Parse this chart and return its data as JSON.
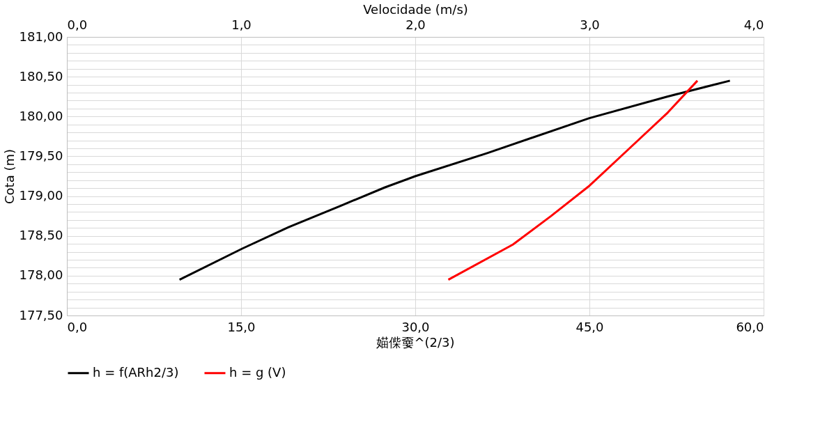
{
  "chart_data": {
    "type": "line",
    "xlabel": "媌偨嫑^(2/3)",
    "ylabel": "Cota (m)",
    "x2label": "Velocidade (m/s)",
    "xlim": [
      0,
      60
    ],
    "xticks": [
      {
        "value": 0,
        "label": "0,0"
      },
      {
        "value": 15,
        "label": "15,0"
      },
      {
        "value": 30,
        "label": "30,0"
      },
      {
        "value": 45,
        "label": "45,0"
      },
      {
        "value": 60,
        "label": "60,0"
      }
    ],
    "x2lim": [
      0,
      4
    ],
    "x2ticks": [
      {
        "value": 0,
        "label": "0,0"
      },
      {
        "value": 1,
        "label": "1,0"
      },
      {
        "value": 2,
        "label": "2,0"
      },
      {
        "value": 3,
        "label": "3,0"
      },
      {
        "value": 4,
        "label": "4,0"
      }
    ],
    "ylim": [
      177.5,
      181
    ],
    "yticks": [
      {
        "value": 177.5,
        "label": "177,50"
      },
      {
        "value": 177.6,
        "label": null
      },
      {
        "value": 177.7,
        "label": null
      },
      {
        "value": 177.8,
        "label": null
      },
      {
        "value": 177.9,
        "label": null
      },
      {
        "value": 178,
        "label": "178,00"
      },
      {
        "value": 178.1,
        "label": null
      },
      {
        "value": 178.2,
        "label": null
      },
      {
        "value": 178.3,
        "label": null
      },
      {
        "value": 178.4,
        "label": null
      },
      {
        "value": 178.5,
        "label": "178,50"
      },
      {
        "value": 178.6,
        "label": null
      },
      {
        "value": 178.7,
        "label": null
      },
      {
        "value": 178.8,
        "label": null
      },
      {
        "value": 178.9,
        "label": null
      },
      {
        "value": 179,
        "label": "179,00"
      },
      {
        "value": 179.1,
        "label": null
      },
      {
        "value": 179.2,
        "label": null
      },
      {
        "value": 179.3,
        "label": null
      },
      {
        "value": 179.4,
        "label": null
      },
      {
        "value": 179.5,
        "label": "179,50"
      },
      {
        "value": 179.6,
        "label": null
      },
      {
        "value": 179.7,
        "label": null
      },
      {
        "value": 179.8,
        "label": null
      },
      {
        "value": 179.9,
        "label": null
      },
      {
        "value": 180,
        "label": "180,00"
      },
      {
        "value": 180.1,
        "label": null
      },
      {
        "value": 180.2,
        "label": null
      },
      {
        "value": 180.3,
        "label": null
      },
      {
        "value": 180.4,
        "label": null
      },
      {
        "value": 180.5,
        "label": "180,50"
      },
      {
        "value": 180.6,
        "label": null
      },
      {
        "value": 180.7,
        "label": null
      },
      {
        "value": 180.8,
        "label": null
      },
      {
        "value": 180.9,
        "label": null
      },
      {
        "value": 181,
        "label": "181,00"
      }
    ],
    "grid": true,
    "legend": "bottom",
    "marker": "none",
    "line_style": "solid",
    "series": [
      {
        "name": "h = f(ARh2/3)",
        "color": "#000000",
        "x": [
          9.7,
          15.1,
          19.1,
          23.6,
          27.4,
          30.0,
          36.2,
          45.0,
          51.7,
          57.1
        ],
        "values": [
          177.95,
          178.34,
          178.61,
          178.88,
          179.11,
          179.25,
          179.54,
          179.98,
          180.25,
          180.45
        ]
      },
      {
        "name": "h = g (V)",
        "color": "#ff0000",
        "axis": "x2",
        "x": [
          2.19,
          2.56,
          2.78,
          3.0,
          3.23,
          3.45,
          3.62
        ],
        "values": [
          177.95,
          178.39,
          178.75,
          179.13,
          179.6,
          180.05,
          180.45
        ]
      }
    ]
  }
}
